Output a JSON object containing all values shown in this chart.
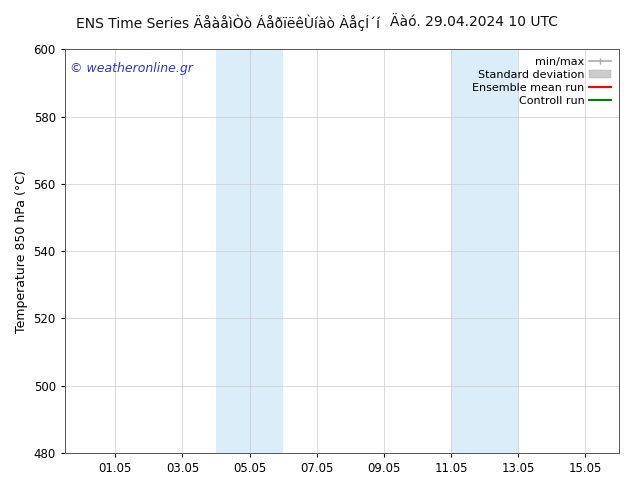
{
  "title_left": "ENS Time Series ÄåàåìÒò ÁåðïëêÙíàò ÀåçÍ´í",
  "title_right": "Äàó. 29.04.2024 10 UTC",
  "ylabel": "Temperature 850 hPa (°C)",
  "ylim": [
    480,
    600
  ],
  "yticks": [
    480,
    500,
    520,
    540,
    560,
    580,
    600
  ],
  "xlim": [
    -0.5,
    16.0
  ],
  "xtick_labels": [
    "01.05",
    "03.05",
    "05.05",
    "07.05",
    "09.05",
    "11.05",
    "13.05",
    "15.05"
  ],
  "xtick_positions": [
    1.0,
    3.0,
    5.0,
    7.0,
    9.0,
    11.0,
    13.0,
    15.0
  ],
  "shade_bands": [
    {
      "xstart": 4.0,
      "xend": 6.0
    },
    {
      "xstart": 11.0,
      "xend": 13.0
    }
  ],
  "shade_color": "#daedf8",
  "bg_color": "#ffffff",
  "plot_bg_color": "#ffffff",
  "grid_color": "#cccccc",
  "watermark_text": "© weatheronline.gr",
  "watermark_color": "#3333cc",
  "legend_entries": [
    {
      "label": "min/max",
      "color": "#aaaaaa",
      "lw": 1.2,
      "style": "minmax"
    },
    {
      "label": "Standard deviation",
      "color": "#cccccc",
      "lw": 7,
      "style": "band"
    },
    {
      "label": "Ensemble mean run",
      "color": "#ff0000",
      "lw": 1.5,
      "style": "line"
    },
    {
      "label": "Controll run",
      "color": "#008000",
      "lw": 1.5,
      "style": "line"
    }
  ],
  "title_fontsize": 10,
  "axis_label_fontsize": 9,
  "tick_fontsize": 8.5,
  "legend_fontsize": 8,
  "watermark_fontsize": 9
}
